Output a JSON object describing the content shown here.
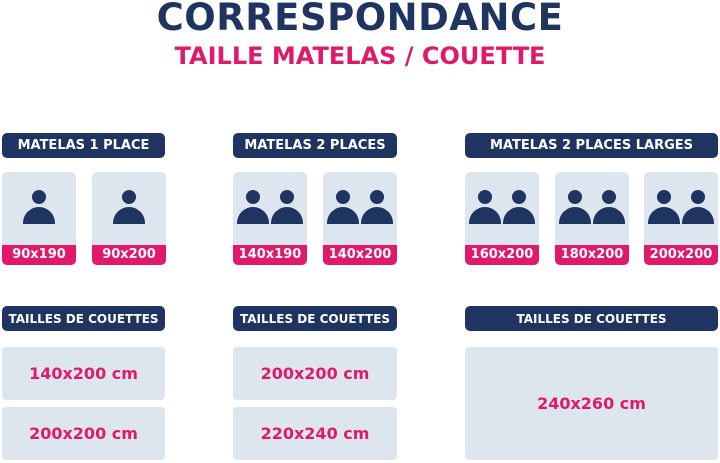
{
  "title": "CORRESPONDANCE",
  "subtitle": "TAILLE MATELAS / COUETTE",
  "colors": {
    "navy": "#1f3461",
    "pink": "#e0196a",
    "card": "#dde6ef"
  },
  "groups": [
    {
      "header": "MATELAS 1 PLACE",
      "persons": 1,
      "sizes": [
        "90x190",
        "90x200"
      ],
      "duvet_header": "TAILLES DE COUETTES",
      "duvets": [
        "140x200 cm",
        "200x200 cm"
      ]
    },
    {
      "header": "MATELAS 2 PLACES",
      "persons": 2,
      "sizes": [
        "140x190",
        "140x200"
      ],
      "duvet_header": "TAILLES DE COUETTES",
      "duvets": [
        "200x200 cm",
        "220x240 cm"
      ]
    },
    {
      "header": "MATELAS 2 PLACES LARGES",
      "persons": 2,
      "sizes": [
        "160x200",
        "180x200",
        "200x200"
      ],
      "duvet_header": "TAILLES DE COUETTES",
      "duvets": [
        "240x260 cm"
      ]
    }
  ]
}
